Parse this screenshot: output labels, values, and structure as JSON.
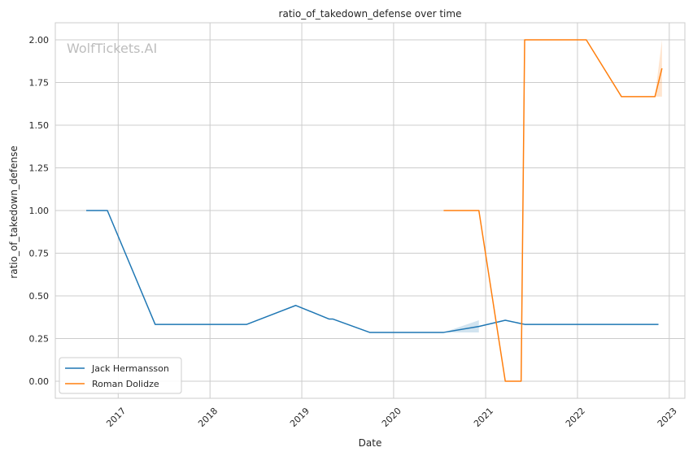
{
  "watermark": "WolfTickets.AI",
  "chart_data": {
    "type": "line",
    "title": "ratio_of_takedown_defense over time",
    "xlabel": "Date",
    "ylabel": "ratio_of_takedown_defense",
    "xlim": [
      "2016-04-26",
      "2023-03-04"
    ],
    "ylim": [
      -0.1,
      2.1
    ],
    "x_ticks": [
      "2017-01-01",
      "2018-01-01",
      "2019-01-01",
      "2020-01-01",
      "2021-01-01",
      "2022-01-01",
      "2023-01-01"
    ],
    "x_tick_labels": [
      "2017",
      "2018",
      "2019",
      "2020",
      "2021",
      "2022",
      "2023"
    ],
    "y_ticks": [
      0,
      0.25,
      0.5,
      0.75,
      1.0,
      1.25,
      1.5,
      1.75,
      2.0
    ],
    "y_tick_labels": [
      "0.00",
      "0.25",
      "0.50",
      "0.75",
      "1.00",
      "1.25",
      "1.50",
      "1.75",
      "2.00"
    ],
    "grid": true,
    "legend_position": "lower-left",
    "series": [
      {
        "name": "Jack Hermansson",
        "color": "#1f77b4",
        "x": [
          "2016-08-27",
          "2016-11-19",
          "2017-05-28",
          "2018-05-27",
          "2018-12-08",
          "2019-04-20",
          "2019-05-05",
          "2019-09-28",
          "2020-07-18",
          "2020-12-05",
          "2021-03-20",
          "2021-06-05",
          "2022-11-19"
        ],
        "y": [
          1.0,
          1.0,
          0.333,
          0.333,
          0.444,
          0.364,
          0.364,
          0.286,
          0.286,
          0.321,
          0.357,
          0.333,
          0.333
        ],
        "band": {
          "x": [
            "2020-07-18",
            "2020-12-05"
          ],
          "lower": [
            0.286,
            0.286
          ],
          "upper": [
            0.286,
            0.357
          ]
        }
      },
      {
        "name": "Roman Dolidze",
        "color": "#ff7f0e",
        "x": [
          "2020-07-18",
          "2020-12-05",
          "2021-03-20",
          "2021-05-22",
          "2021-06-05",
          "2022-02-05",
          "2022-06-25",
          "2022-11-05",
          "2022-12-03"
        ],
        "y": [
          1.0,
          1.0,
          0.0,
          0.0,
          2.0,
          2.0,
          1.667,
          1.667,
          1.833
        ],
        "band": {
          "x": [
            "2022-11-05",
            "2022-12-03"
          ],
          "lower": [
            1.667,
            1.667
          ],
          "upper": [
            1.667,
            2.0
          ]
        }
      }
    ]
  }
}
